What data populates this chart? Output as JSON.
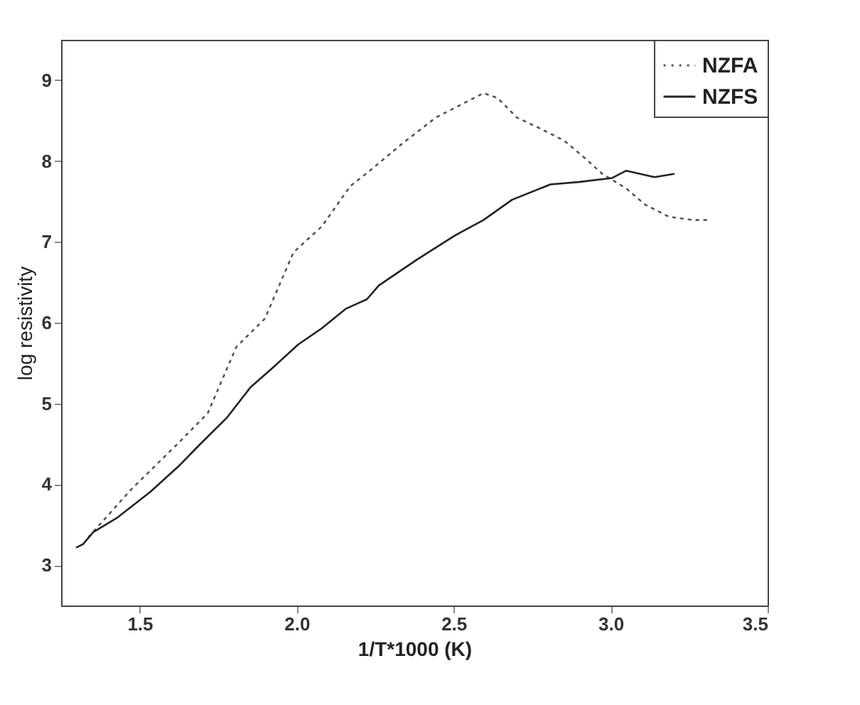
{
  "chart_data": {
    "type": "line",
    "xlabel": "1/T*1000 (K)",
    "ylabel": "log resistivity",
    "xlim": [
      1.25,
      3.5
    ],
    "xticks": [
      {
        "value": 1.5,
        "label": "1.5"
      },
      {
        "value": 2,
        "label": "2.0"
      },
      {
        "value": 2.5,
        "label": "2.5"
      },
      {
        "value": 3,
        "label": "3.0"
      },
      {
        "value": 3.5,
        "label": "3.5"
      }
    ],
    "ylim": [
      2.5,
      9.5
    ],
    "yticks": [
      3,
      4,
      5,
      6,
      7,
      8,
      9
    ],
    "legend": "top right",
    "grid": false,
    "marker": "none",
    "series": [
      {
        "name": "NZFA",
        "color": "#555555",
        "line_style": "dotted",
        "x": [
          1.338,
          1.474,
          1.626,
          1.717,
          1.808,
          1.899,
          1.99,
          2.08,
          2.171,
          2.23,
          2.338,
          2.444,
          2.52,
          2.595,
          2.64,
          2.701,
          2.777,
          2.853,
          2.914,
          2.974,
          3.05,
          3.11,
          3.186,
          3.262,
          3.307
        ],
        "values": [
          3.35,
          3.94,
          4.52,
          4.88,
          5.7,
          6.05,
          6.87,
          7.19,
          7.69,
          7.87,
          8.22,
          8.54,
          8.69,
          8.84,
          8.78,
          8.54,
          8.4,
          8.25,
          8.05,
          7.84,
          7.66,
          7.46,
          7.31,
          7.27,
          7.27
        ]
      },
      {
        "name": "NZFS",
        "color": "#222222",
        "line_style": "solid",
        "x": [
          1.3,
          1.32,
          1.353,
          1.43,
          1.535,
          1.626,
          1.686,
          1.777,
          1.853,
          1.929,
          2.005,
          2.08,
          2.156,
          2.224,
          2.262,
          2.383,
          2.505,
          2.595,
          2.686,
          2.808,
          2.898,
          3.005,
          3.05,
          3.14,
          3.201
        ],
        "values": [
          3.22,
          3.26,
          3.41,
          3.59,
          3.91,
          4.23,
          4.47,
          4.82,
          5.2,
          5.46,
          5.73,
          5.93,
          6.17,
          6.29,
          6.46,
          6.78,
          7.08,
          7.27,
          7.52,
          7.71,
          7.74,
          7.79,
          7.88,
          7.8,
          7.84
        ]
      }
    ]
  }
}
